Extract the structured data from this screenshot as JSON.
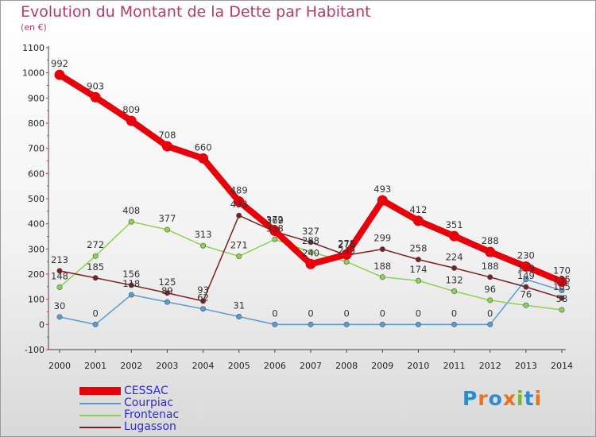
{
  "header": {
    "title": "Evolution du Montant de la Dette par Habitant",
    "subtitle": "(en €)"
  },
  "logo": {
    "text": "Proxiti",
    "colors": [
      "#2e8bd0",
      "#e8731c",
      "#2e8bd0",
      "#e8731c",
      "#79b82d",
      "#2e8bd0",
      "#e8731c"
    ]
  },
  "chart_data": {
    "type": "line",
    "title": "Evolution du Montant de la Dette par Habitant",
    "subtitle": "(en €)",
    "xlabel": "",
    "ylabel": "",
    "x": [
      "2000",
      "2001",
      "2002",
      "2003",
      "2004",
      "2005",
      "2006",
      "2007",
      "2008",
      "2009",
      "2010",
      "2011",
      "2012",
      "2013",
      "2014"
    ],
    "ylim": [
      -100,
      1100
    ],
    "yticks": [
      -100,
      0,
      100,
      200,
      300,
      400,
      500,
      600,
      700,
      800,
      900,
      1000,
      1100
    ],
    "grid": false,
    "legend_position": "bottom-left",
    "series": [
      {
        "name": "CESSAC",
        "color": "#e8000b",
        "values": [
          992,
          903,
          809,
          708,
          660,
          489,
          372,
          240,
          278,
          493,
          412,
          351,
          288,
          230,
          170
        ],
        "labels": [
          "992",
          "903",
          "809",
          "708",
          "660",
          "489",
          "372",
          "240",
          "278",
          "493",
          "412",
          "351",
          "288",
          "230",
          "170"
        ]
      },
      {
        "name": "Courpiac",
        "color": "#5b9bd0",
        "values": [
          30,
          0,
          118,
          89,
          62,
          31,
          0,
          0,
          0,
          0,
          0,
          0,
          0,
          179,
          135
        ],
        "labels": [
          "30",
          "0",
          "118",
          "89",
          "62",
          "31",
          "0",
          "0",
          "0",
          "0",
          "0",
          "0",
          "0",
          "179",
          "135"
        ]
      },
      {
        "name": "Frontenac",
        "color": "#8bd34f",
        "values": [
          148,
          272,
          408,
          377,
          313,
          271,
          338,
          288,
          249,
          188,
          174,
          132,
          96,
          76,
          58
        ],
        "labels": [
          "148",
          "272",
          "408",
          "377",
          "313",
          "271",
          "338",
          "288",
          "249",
          "188",
          "174",
          "132",
          "96",
          "76",
          "58"
        ]
      },
      {
        "name": "Lugasson",
        "color": "#7b1f24",
        "values": [
          213,
          185,
          156,
          125,
          93,
          433,
          369,
          327,
          275,
          299,
          258,
          224,
          188,
          149,
          105
        ],
        "labels": [
          "213",
          "185",
          "156",
          "125",
          "93",
          "433",
          "369",
          "327",
          "275",
          "299",
          "258",
          "224",
          "188",
          "149",
          "105"
        ]
      }
    ]
  }
}
